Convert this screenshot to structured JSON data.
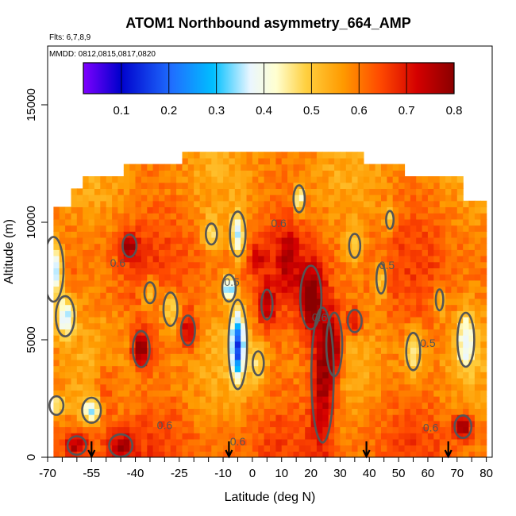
{
  "chart_data": {
    "type": "heatmap",
    "title": "ATOM1 Northbound asymmetry_664_AMP",
    "subtitle_flights": "Flts: 6,7,8,9",
    "subtitle_dates": "MMDD: 0812,0815,0817,0820",
    "xlabel": "Latitude (deg N)",
    "ylabel": "Altitude (m)",
    "xlim": [
      -70,
      82
    ],
    "ylim": [
      0,
      17500
    ],
    "x_tick_labels": [
      "-70",
      "-55",
      "-40",
      "-25",
      "-10",
      "0",
      "10",
      "20",
      "30",
      "40",
      "50",
      "60",
      "70",
      "80"
    ],
    "x_tick_values": [
      -70,
      -55,
      -40,
      -25,
      -10,
      0,
      10,
      20,
      30,
      40,
      50,
      60,
      70,
      80
    ],
    "y_tick_labels": [
      "0",
      "5000",
      "10000",
      "15000"
    ],
    "y_tick_values": [
      0,
      5000,
      10000,
      15000
    ],
    "colorbar": {
      "range": [
        0.02,
        0.8
      ],
      "tick_labels": [
        "0.1",
        "0.2",
        "0.3",
        "0.4",
        "0.5",
        "0.6",
        "0.7",
        "0.8"
      ],
      "tick_values": [
        0.1,
        0.2,
        0.3,
        0.4,
        0.5,
        0.6,
        0.7,
        0.8
      ],
      "colors": [
        "#7f00ff",
        "#0000cc",
        "#1f6fff",
        "#00bfff",
        "#eaf6ff",
        "#ffffd0",
        "#ffd040",
        "#ff9a00",
        "#ff4a00",
        "#d40000",
        "#8a0000"
      ]
    },
    "contour_labels": [
      {
        "text": "0.6",
        "lat": -46,
        "alt": 8100
      },
      {
        "text": "0.6",
        "lat": -30,
        "alt": 1200
      },
      {
        "text": "0.6",
        "lat": -5,
        "alt": 500
      },
      {
        "text": "0.6",
        "lat": 9,
        "alt": 9800
      },
      {
        "text": "0.5",
        "lat": 60,
        "alt": 4700
      },
      {
        "text": "0.6",
        "lat": 61,
        "alt": 1100
      },
      {
        "text": "0.5",
        "lat": 46,
        "alt": 8000
      },
      {
        "text": "0.5",
        "lat": -7,
        "alt": 7300
      },
      {
        "text": "0.6",
        "lat": 23,
        "alt": 5800
      }
    ],
    "flight_arrows_lat": [
      -55,
      -8,
      39,
      67
    ]
  }
}
